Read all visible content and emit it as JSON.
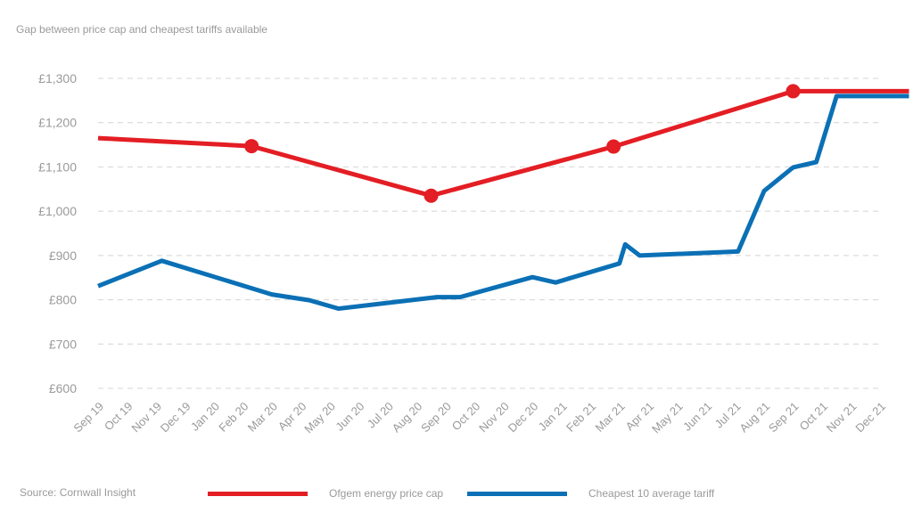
{
  "chart_data": {
    "type": "line",
    "title": "Gap between price cap and cheapest tariffs available",
    "xlabel": "",
    "ylabel": "",
    "ylim": [
      600,
      1300
    ],
    "yticks": [
      600,
      700,
      800,
      900,
      1000,
      1100,
      1200,
      1300
    ],
    "ytick_labels": [
      "£600",
      "£700",
      "£800",
      "£900",
      "£1,000",
      "£1,100",
      "£1,200",
      "£1,300"
    ],
    "categories": [
      "Sep 19",
      "Oct 19",
      "Nov 19",
      "Dec 19",
      "Jan 20",
      "Feb 20",
      "Mar 20",
      "Apr 20",
      "May 20",
      "Jun 20",
      "Jul 20",
      "Aug 20",
      "Sep 20",
      "Oct 20",
      "Nov 20",
      "Dec 20",
      "Jan 21",
      "Feb 21",
      "Mar 21",
      "Apr 21",
      "May 21",
      "Jun 21",
      "Jul 21",
      "Aug 21",
      "Sep 21",
      "Oct 21",
      "Nov 21",
      "Dec 21"
    ],
    "grid": "horizontal-dashed",
    "legend_position": "bottom",
    "series": [
      {
        "name": "Ofgem energy price cap",
        "color": "#e31e24",
        "x": [
          0,
          5.3,
          11.5,
          17.8,
          24.0,
          28.0
        ],
        "values": [
          1165,
          1147,
          1035,
          1146,
          1271,
          1271
        ],
        "markers_at_index": [
          1,
          2,
          3,
          4
        ]
      },
      {
        "name": "Cheapest 10 average tariff",
        "color": "#0b70b5",
        "x": [
          0,
          2.2,
          6.0,
          7.3,
          8.3,
          11.7,
          12.5,
          15.0,
          15.8,
          18.0,
          18.2,
          18.7,
          22.1,
          23.0,
          24.0,
          24.8,
          25.5,
          28.0
        ],
        "values": [
          831,
          888,
          812,
          799,
          780,
          806,
          806,
          851,
          839,
          882,
          925,
          900,
          909,
          1046,
          1099,
          1111,
          1260,
          1260
        ]
      }
    ],
    "source": "Source: Cornwall Insight"
  }
}
